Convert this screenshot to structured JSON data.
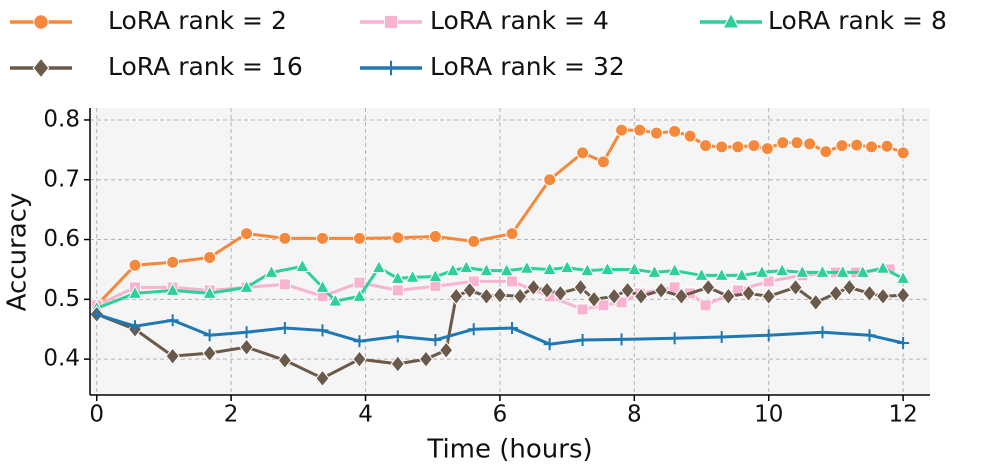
{
  "chart_data": {
    "type": "line",
    "xlabel": "Time (hours)",
    "ylabel": "Accuracy",
    "xlim": [
      -0.1,
      12.4
    ],
    "ylim": [
      0.34,
      0.82
    ],
    "xticks": [
      0,
      2,
      4,
      6,
      8,
      10,
      12
    ],
    "yticks": [
      0.4,
      0.5,
      0.6,
      0.7,
      0.8
    ],
    "grid": true,
    "legend": "top",
    "series": [
      {
        "name": "LoRA rank = 2",
        "color": "#f5883a",
        "marker": "circle",
        "x": [
          0,
          0.57,
          1.13,
          1.68,
          2.23,
          2.8,
          3.36,
          3.91,
          4.48,
          5.04,
          5.61,
          6.18,
          6.74,
          7.23,
          7.54,
          7.81,
          8.08,
          8.33,
          8.6,
          8.83,
          9.06,
          9.3,
          9.54,
          9.78,
          9.98,
          10.21,
          10.42,
          10.61,
          10.85,
          11.09,
          11.31,
          11.53,
          11.76,
          12
        ],
        "values": [
          0.49,
          0.557,
          0.562,
          0.57,
          0.61,
          0.602,
          0.602,
          0.602,
          0.603,
          0.605,
          0.597,
          0.61,
          0.7,
          0.745,
          0.73,
          0.783,
          0.783,
          0.778,
          0.781,
          0.773,
          0.757,
          0.755,
          0.755,
          0.757,
          0.752,
          0.762,
          0.762,
          0.76,
          0.747,
          0.757,
          0.758,
          0.755,
          0.756,
          0.745
        ]
      },
      {
        "name": "LoRA rank = 4",
        "color": "#f7b3cf",
        "marker": "square",
        "x": [
          0,
          0.57,
          1.13,
          1.68,
          2.23,
          2.8,
          3.36,
          3.91,
          4.48,
          5.04,
          5.61,
          6.18,
          6.74,
          7.23,
          7.54,
          7.81,
          8.08,
          8.6,
          8.83,
          9.06,
          9.54,
          10.0,
          10.5,
          11.0,
          11.3,
          11.8
        ],
        "values": [
          0.49,
          0.52,
          0.52,
          0.515,
          0.52,
          0.525,
          0.505,
          0.528,
          0.515,
          0.522,
          0.53,
          0.53,
          0.505,
          0.483,
          0.49,
          0.495,
          0.51,
          0.52,
          0.51,
          0.49,
          0.515,
          0.53,
          0.54,
          0.545,
          0.545,
          0.55
        ]
      },
      {
        "name": "LoRA rank = 8",
        "color": "#2dcf9a",
        "marker": "triangle",
        "x": [
          0,
          0.57,
          1.13,
          1.68,
          2.23,
          2.6,
          3.06,
          3.36,
          3.55,
          3.91,
          4.2,
          4.48,
          4.7,
          5.04,
          5.3,
          5.5,
          5.8,
          6.1,
          6.4,
          6.74,
          7.0,
          7.3,
          7.6,
          8.0,
          8.3,
          8.6,
          9.0,
          9.3,
          9.6,
          9.9,
          10.2,
          10.5,
          10.8,
          11.1,
          11.4,
          11.7,
          12
        ],
        "values": [
          0.485,
          0.51,
          0.515,
          0.51,
          0.52,
          0.545,
          0.555,
          0.52,
          0.497,
          0.505,
          0.553,
          0.535,
          0.537,
          0.538,
          0.548,
          0.553,
          0.548,
          0.548,
          0.552,
          0.55,
          0.553,
          0.548,
          0.55,
          0.55,
          0.545,
          0.548,
          0.54,
          0.54,
          0.54,
          0.545,
          0.548,
          0.545,
          0.545,
          0.545,
          0.545,
          0.552,
          0.535
        ]
      },
      {
        "name": "LoRA rank = 16",
        "color": "#6b5a4a",
        "marker": "diamond",
        "x": [
          0,
          0.57,
          1.13,
          1.68,
          2.23,
          2.8,
          3.36,
          3.91,
          4.48,
          4.9,
          5.2,
          5.35,
          5.55,
          5.8,
          6.0,
          6.3,
          6.5,
          6.7,
          6.9,
          7.2,
          7.4,
          7.7,
          7.9,
          8.1,
          8.4,
          8.7,
          9.1,
          9.4,
          9.7,
          10.0,
          10.4,
          10.7,
          11.0,
          11.2,
          11.5,
          11.7,
          12
        ],
        "values": [
          0.475,
          0.45,
          0.405,
          0.41,
          0.42,
          0.398,
          0.368,
          0.4,
          0.392,
          0.4,
          0.415,
          0.505,
          0.515,
          0.505,
          0.507,
          0.505,
          0.52,
          0.515,
          0.51,
          0.52,
          0.5,
          0.505,
          0.515,
          0.505,
          0.515,
          0.505,
          0.52,
          0.505,
          0.51,
          0.505,
          0.52,
          0.495,
          0.51,
          0.52,
          0.51,
          0.505,
          0.507
        ]
      },
      {
        "name": "LoRA rank = 32",
        "color": "#1f78b4",
        "marker": "plus",
        "x": [
          0,
          0.57,
          1.13,
          1.68,
          2.23,
          2.8,
          3.36,
          3.91,
          4.48,
          5.04,
          5.61,
          6.18,
          6.74,
          7.23,
          7.81,
          8.6,
          9.3,
          10.0,
          10.8,
          11.5,
          12
        ],
        "values": [
          0.475,
          0.455,
          0.465,
          0.44,
          0.445,
          0.452,
          0.448,
          0.43,
          0.438,
          0.432,
          0.45,
          0.452,
          0.425,
          0.432,
          0.433,
          0.435,
          0.437,
          0.44,
          0.445,
          0.44,
          0.427
        ]
      }
    ]
  }
}
